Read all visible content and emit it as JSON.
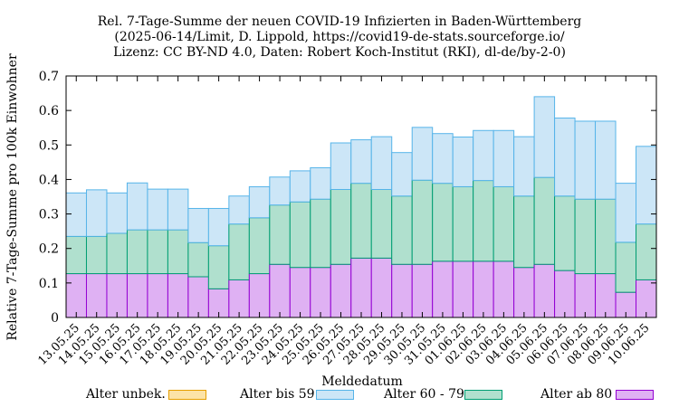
{
  "chart_data": {
    "type": "bar",
    "stacked": true,
    "title_lines": [
      "Rel. 7-Tage-Summe der neuen COVID-19 Infizierten in Baden-Württemberg",
      "(2025-06-14/Limit, D. Lippold, https://covid19-de-stats.sourceforge.io/",
      "Lizenz: CC BY-ND 4.0, Daten: Robert Koch-Institut (RKI), dl-de/by-2-0)"
    ],
    "xlabel": "Meldedatum",
    "ylabel": "Relative 7-Tage-Summe pro 100k Einwohner",
    "ylim": [
      0,
      0.7
    ],
    "yticks": [
      "0",
      "0.1",
      "0.2",
      "0.3",
      "0.4",
      "0.5",
      "0.6",
      "0.7"
    ],
    "grid": false,
    "categories": [
      "13.05.25",
      "14.05.25",
      "15.05.25",
      "16.05.25",
      "17.05.25",
      "18.05.25",
      "19.05.25",
      "20.05.25",
      "21.05.25",
      "22.05.25",
      "23.05.25",
      "24.05.25",
      "25.05.25",
      "26.05.25",
      "27.05.25",
      "28.05.25",
      "29.05.25",
      "30.05.25",
      "31.05.25",
      "01.06.25",
      "02.06.25",
      "03.06.25",
      "04.06.25",
      "05.06.25",
      "06.06.25",
      "07.06.25",
      "08.06.25",
      "09.06.25",
      "10.06.25"
    ],
    "series": [
      {
        "name": "Alter ab 80",
        "fill": "#dfb1f3",
        "stroke": "#9400d3",
        "values": [
          0.127,
          0.127,
          0.127,
          0.127,
          0.127,
          0.127,
          0.118,
          0.083,
          0.109,
          0.127,
          0.154,
          0.145,
          0.145,
          0.154,
          0.172,
          0.172,
          0.154,
          0.154,
          0.163,
          0.163,
          0.163,
          0.163,
          0.145,
          0.154,
          0.136,
          0.127,
          0.127,
          0.073,
          0.109
        ]
      },
      {
        "name": "Alter 60 - 79",
        "fill": "#b0e0ce",
        "stroke": "#009e73",
        "values": [
          0.108,
          0.108,
          0.117,
          0.127,
          0.127,
          0.127,
          0.099,
          0.125,
          0.162,
          0.162,
          0.172,
          0.19,
          0.198,
          0.217,
          0.217,
          0.199,
          0.198,
          0.244,
          0.226,
          0.216,
          0.234,
          0.216,
          0.207,
          0.252,
          0.216,
          0.216,
          0.216,
          0.145,
          0.162
        ]
      },
      {
        "name": "Alter bis 59",
        "fill": "#cce6f7",
        "stroke": "#56b4e9",
        "values": [
          0.126,
          0.135,
          0.117,
          0.136,
          0.118,
          0.118,
          0.099,
          0.108,
          0.081,
          0.09,
          0.081,
          0.09,
          0.091,
          0.135,
          0.126,
          0.153,
          0.126,
          0.153,
          0.144,
          0.144,
          0.145,
          0.163,
          0.172,
          0.234,
          0.226,
          0.226,
          0.226,
          0.171,
          0.225
        ]
      },
      {
        "name": "Alter unbek.",
        "fill": "#fce3a7",
        "stroke": "#e69f00",
        "values": [
          0,
          0,
          0,
          0,
          0,
          0,
          0,
          0,
          0,
          0,
          0,
          0,
          0,
          0,
          0,
          0,
          0,
          0,
          0,
          0,
          0,
          0,
          0,
          0,
          0,
          0,
          0,
          0,
          0
        ]
      }
    ],
    "legend_order": [
      "Alter unbek.",
      "Alter bis 59",
      "Alter 60 - 79",
      "Alter ab 80"
    ],
    "legend_position": "bottom"
  }
}
